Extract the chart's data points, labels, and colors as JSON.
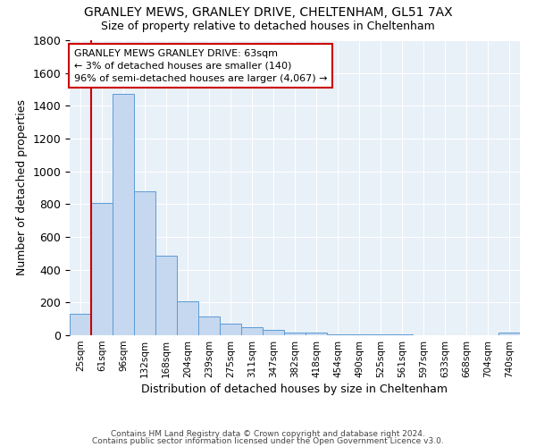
{
  "title1": "GRANLEY MEWS, GRANLEY DRIVE, CHELTENHAM, GL51 7AX",
  "title2": "Size of property relative to detached houses in Cheltenham",
  "xlabel": "Distribution of detached houses by size in Cheltenham",
  "ylabel": "Number of detached properties",
  "categories": [
    "25sqm",
    "61sqm",
    "96sqm",
    "132sqm",
    "168sqm",
    "204sqm",
    "239sqm",
    "275sqm",
    "311sqm",
    "347sqm",
    "382sqm",
    "418sqm",
    "454sqm",
    "490sqm",
    "525sqm",
    "561sqm",
    "597sqm",
    "633sqm",
    "668sqm",
    "704sqm",
    "740sqm"
  ],
  "values": [
    130,
    805,
    1475,
    878,
    488,
    205,
    112,
    70,
    48,
    32,
    18,
    15,
    8,
    6,
    4,
    3,
    2,
    2,
    1,
    1,
    15
  ],
  "bar_color": "#c5d8ef",
  "bar_edge_color": "#5b9bd5",
  "annotation_text": "GRANLEY MEWS GRANLEY DRIVE: 63sqm\n← 3% of detached houses are smaller (140)\n96% of semi-detached houses are larger (4,067) →",
  "annotation_box_color": "#ffffff",
  "annotation_box_edge": "#cc0000",
  "vline_color": "#cc0000",
  "vline_x_idx": 1,
  "footer1": "Contains HM Land Registry data © Crown copyright and database right 2024.",
  "footer2": "Contains public sector information licensed under the Open Government Licence v3.0.",
  "bg_color": "#e8f0f8",
  "ylim": [
    0,
    1800
  ],
  "grid_color": "#ffffff"
}
